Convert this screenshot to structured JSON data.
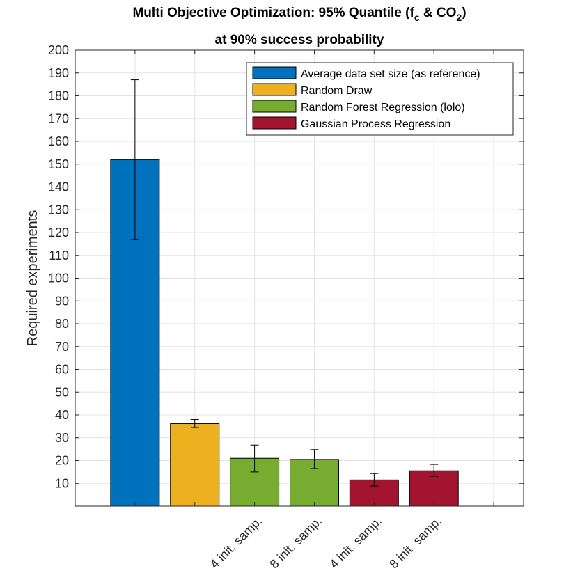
{
  "chart_data": {
    "type": "bar",
    "title_line1_prefix": "Multi Objective Optimization: 95% Quantile (f",
    "title_sub_c": "c",
    "title_mid": " & CO",
    "title_sub_2": "2",
    "title_suffix": ")",
    "title_line2": "at 90% success probability",
    "ylabel": "Required experiments",
    "xlabel": "",
    "ylim": [
      0,
      200
    ],
    "ytick_step": 10,
    "grid": true,
    "legend_position": "top-right",
    "legend": [
      {
        "label": "Average data set size (as reference)",
        "color": "#0072BD"
      },
      {
        "label": "Random Draw",
        "color": "#EDB120"
      },
      {
        "label": "Random Forest Regression (lolo)",
        "color": "#77AC30"
      },
      {
        "label": "Gaussian Process Regression",
        "color": "#A2142F"
      }
    ],
    "categories": [
      "",
      "",
      "4 init. samp.",
      "8 init. samp.",
      "4 init. samp.",
      "8 init. samp."
    ],
    "values": [
      152,
      36.2,
      21,
      20.5,
      11.5,
      15.5
    ],
    "err_low": [
      117,
      34.5,
      15,
      16.5,
      8.8,
      13
    ],
    "err_high": [
      187,
      38,
      26.8,
      24.8,
      14.3,
      18.3
    ],
    "bar_colors": [
      "#0072BD",
      "#EDB120",
      "#77AC30",
      "#77AC30",
      "#A2142F",
      "#A2142F"
    ]
  }
}
